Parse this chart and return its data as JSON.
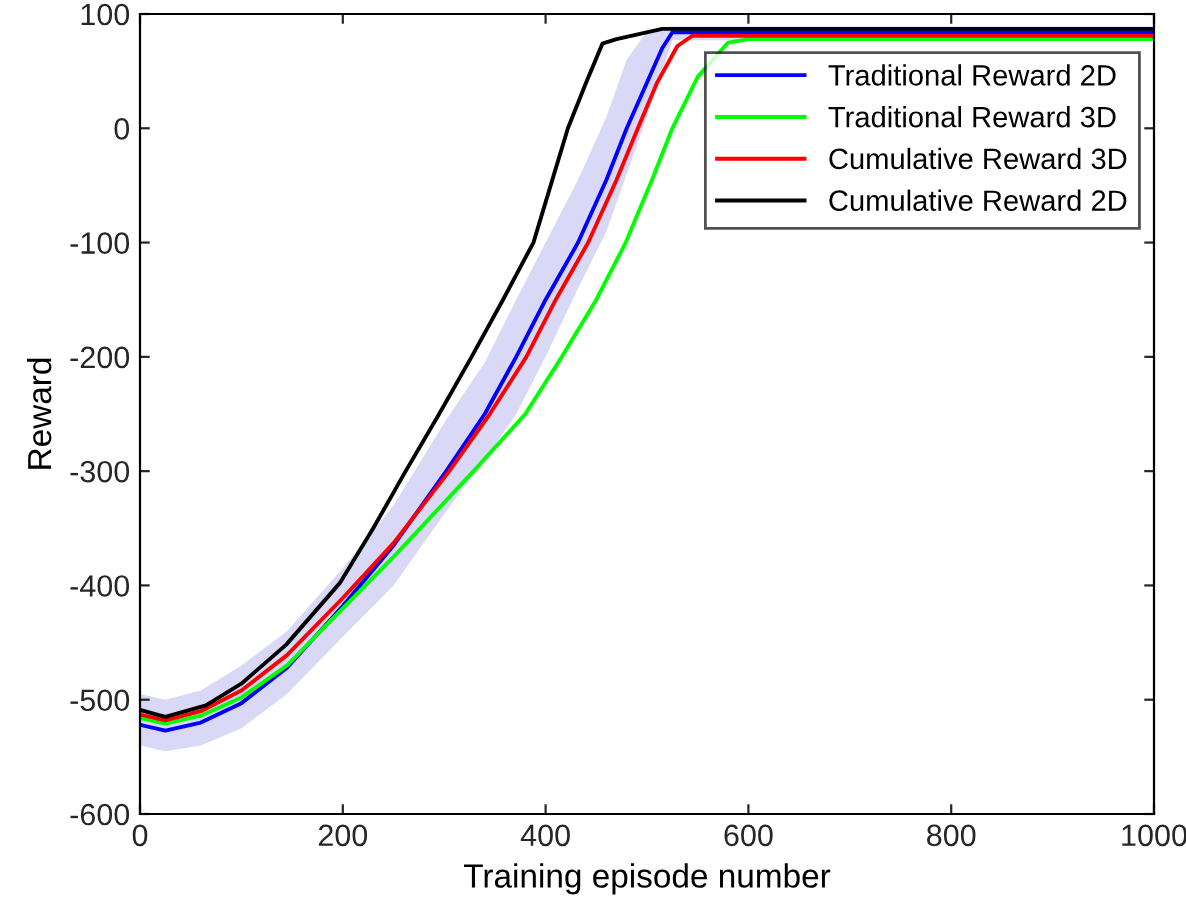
{
  "chart_data": {
    "type": "line",
    "xlabel": "Training episode number",
    "ylabel": "Reward",
    "xlim": [
      0,
      1000
    ],
    "ylim": [
      -600,
      100
    ],
    "xticks": [
      0,
      200,
      400,
      600,
      800,
      1000
    ],
    "yticks": [
      -600,
      -500,
      -400,
      -300,
      -200,
      -100,
      0,
      100
    ],
    "grid": false,
    "legend": "top right",
    "line_style": "solid",
    "marker": "none",
    "series": [
      {
        "name": "Traditional Reward 2D",
        "color": "#0000ff",
        "x": [
          0,
          25,
          60,
          100,
          145,
          200,
          250,
          302,
          340,
          371,
          400,
          432,
          460,
          480,
          500,
          515,
          525,
          600,
          700,
          800,
          900,
          1000
        ],
        "values": [
          -522,
          -527,
          -520,
          -503,
          -472,
          -418,
          -365,
          -300,
          -250,
          -200,
          -150,
          -100,
          -45,
          0,
          40,
          70,
          84,
          84,
          84,
          84,
          84,
          84
        ],
        "lower": [
          -540,
          -545,
          -540,
          -525,
          -495,
          -445,
          -400,
          -335,
          -290,
          -250,
          -200,
          -140,
          -90,
          -40,
          10,
          50,
          77,
          77,
          77,
          77,
          77,
          77
        ],
        "upper": [
          -495,
          -500,
          -492,
          -470,
          -440,
          -385,
          -330,
          -255,
          -205,
          -150,
          -100,
          -45,
          10,
          60,
          85,
          88,
          89,
          89,
          89,
          89,
          89,
          89
        ]
      },
      {
        "name": "Traditional Reward 3D",
        "color": "#00ff00",
        "x": [
          0,
          25,
          60,
          100,
          145,
          200,
          250,
          329,
          380,
          416,
          450,
          479,
          505,
          525,
          550,
          580,
          600,
          700,
          800,
          900,
          1000
        ],
        "values": [
          -516,
          -521,
          -514,
          -498,
          -470,
          -420,
          -375,
          -300,
          -250,
          -200,
          -150,
          -100,
          -45,
          0,
          45,
          75,
          78,
          78,
          78,
          78,
          78
        ]
      },
      {
        "name": "Cumulative Reward 3D",
        "color": "#ff0000",
        "x": [
          0,
          25,
          60,
          100,
          145,
          200,
          250,
          305,
          345,
          381,
          410,
          442,
          470,
          491,
          510,
          530,
          545,
          600,
          700,
          800,
          900,
          1000
        ],
        "values": [
          -513,
          -518,
          -510,
          -492,
          -461,
          -411,
          -363,
          -300,
          -250,
          -200,
          -150,
          -100,
          -45,
          0,
          40,
          72,
          81,
          81,
          81,
          81,
          81,
          81
        ]
      },
      {
        "name": "Cumulative Reward 2D",
        "color": "#000000",
        "x": [
          0,
          25,
          65,
          100,
          144,
          197,
          230,
          262,
          295,
          327,
          358,
          388,
          405,
          422,
          440,
          456,
          470,
          515,
          600,
          700,
          800,
          900,
          1000
        ],
        "values": [
          -509,
          -515,
          -505,
          -486,
          -452,
          -398,
          -350,
          -300,
          -250,
          -200,
          -150,
          -100,
          -50,
          0,
          40,
          74,
          78,
          87,
          87,
          87,
          87,
          87,
          87
        ]
      }
    ]
  }
}
